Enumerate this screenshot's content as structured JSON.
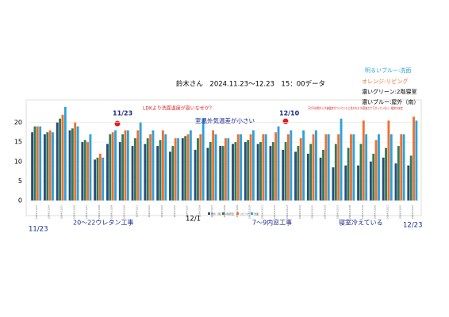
{
  "chart_data": {
    "type": "bar",
    "title": "鈴木さん　2024.11.23～12.23　15：00データ",
    "legend_notes": [
      "明るいブルー:洗面",
      "オレンジ:リビング",
      "濃いグリーン:2階寝室",
      "濃いブルー:屋外（南）"
    ],
    "categories": [
      "2024/11/23",
      "2024/11/24",
      "2024/11/25",
      "2024/11/26",
      "2024/11/27",
      "2024/11/28",
      "2024/11/29",
      "2024/11/30",
      "2024/12/1",
      "2024/12/2",
      "2024/12/3",
      "2024/12/4",
      "2024/12/5",
      "2024/12/6",
      "2024/12/7",
      "2024/12/8",
      "2024/12/9",
      "2024/12/10",
      "2024/12/11",
      "2024/12/12",
      "2024/12/13",
      "2024/12/14",
      "2024/12/15",
      "2024/12/16",
      "2024/12/17",
      "2024/12/18",
      "2024/12/19",
      "2024/12/20",
      "2024/12/21",
      "2024/12/22",
      "2024/12/23"
    ],
    "series": [
      {
        "name": "屋外（南）",
        "color": "#2c4a7a",
        "values": [
          17.5,
          17,
          20,
          18,
          15,
          10.5,
          14.5,
          15,
          14,
          14.5,
          14,
          12.5,
          16,
          13,
          13.5,
          14,
          14.5,
          15,
          14.5,
          14,
          13,
          12.5,
          12,
          11,
          8.5,
          9,
          9,
          10,
          11,
          9.5,
          9
        ]
      },
      {
        "name": "2階寝室",
        "color": "#2e7d5b",
        "values": [
          19,
          17.5,
          21,
          18.5,
          15.5,
          11,
          17,
          17,
          16,
          16,
          15.5,
          14,
          16.5,
          16,
          15,
          14,
          15,
          15.5,
          15,
          15,
          15,
          14,
          14.5,
          13,
          14.5,
          13.5,
          14.5,
          12,
          13.5,
          14,
          11.5
        ]
      },
      {
        "name": "リビング",
        "color": "#f07030",
        "values": [
          19,
          18,
          22,
          20,
          15,
          12,
          17.5,
          18,
          18,
          17,
          18,
          16,
          17,
          17,
          18,
          16,
          17,
          17,
          17,
          17.5,
          17,
          16,
          17,
          17,
          17,
          17,
          20.5,
          15.5,
          20.5,
          17,
          21.5
        ]
      },
      {
        "name": "洗面",
        "color": "#2aa3dd",
        "values": [
          19,
          17.5,
          24,
          19,
          17,
          11,
          18,
          18,
          20,
          18,
          17,
          16,
          18,
          21,
          17,
          16,
          17,
          18,
          17,
          19,
          18,
          18,
          18,
          17,
          21,
          17,
          17,
          17,
          17,
          17,
          20.5
        ]
      }
    ],
    "ylim": [
      0,
      25
    ],
    "yticks": [
      0,
      5,
      10,
      15,
      20
    ],
    "grid": true,
    "annotations": [
      "11/23",
      "12/10",
      "LDKより洗面温度が高いなぜか？",
      "室温外気温差が小さい",
      "12/10は朝から午後暖房がついていたと思われる 内窓施工で下がっていない。暖房の安定",
      "11/23",
      "20～22ウレタン工事",
      "12/1",
      "7～9内窓工事",
      "寝室冷えている",
      "12/23"
    ]
  }
}
